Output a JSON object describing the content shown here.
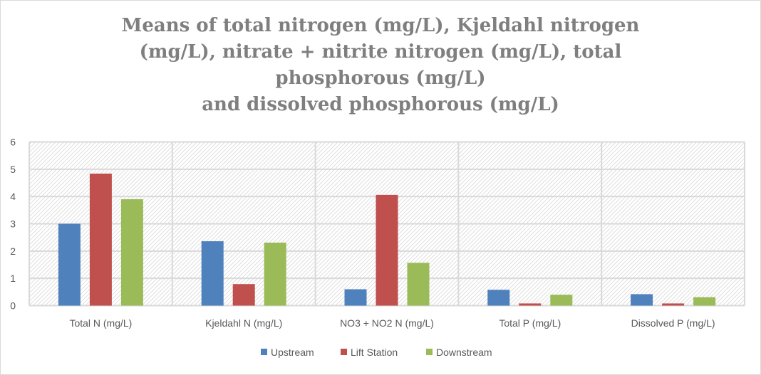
{
  "chart_data": {
    "type": "bar",
    "title": "Means of total nitrogen (mg/L), Kjeldahl nitrogen\n(mg/L), nitrate + nitrite nitrogen (mg/L), total\nphosphorous (mg/L)\nand dissolved phosphorous (mg/L)",
    "xlabel": "",
    "ylabel": "",
    "ylim": [
      0,
      6
    ],
    "yticks": [
      "0",
      "1",
      "2",
      "3",
      "4",
      "5",
      "6"
    ],
    "grid": true,
    "legend_position": "bottom",
    "categories": [
      "Total N (mg/L)",
      "Kjeldahl N (mg/L)",
      "NO3 + NO2 N (mg/L)",
      "Total P (mg/L)",
      "Dissolved P (mg/L)"
    ],
    "series": [
      {
        "name": "Upstream",
        "color": "#4f81bd",
        "values": [
          3.0,
          2.36,
          0.6,
          0.58,
          0.42
        ]
      },
      {
        "name": "Lift Station",
        "color": "#c0504d",
        "values": [
          4.84,
          0.79,
          4.06,
          0.08,
          0.08
        ]
      },
      {
        "name": "Downstream",
        "color": "#9bbb59",
        "values": [
          3.9,
          2.31,
          1.57,
          0.4,
          0.31
        ]
      }
    ]
  }
}
